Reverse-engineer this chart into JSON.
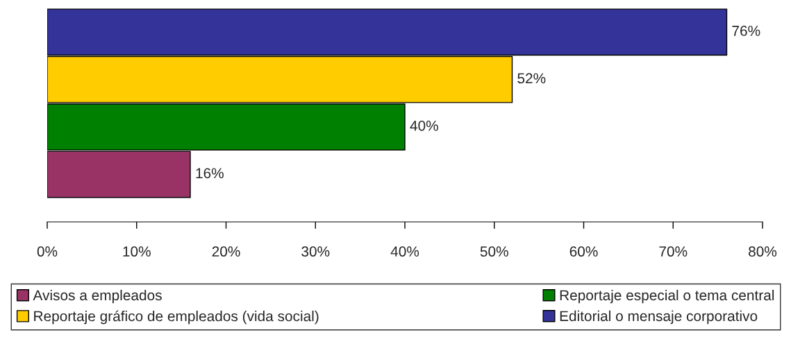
{
  "chart_data": {
    "type": "bar",
    "orientation": "horizontal",
    "categories": [
      null
    ],
    "series": [
      {
        "name": "Editorial o mensaje corporativo",
        "color": "#333399",
        "values": [
          76
        ],
        "value_labels": [
          "76%"
        ]
      },
      {
        "name": "Reportaje gráfico de empleados (vida social)",
        "color": "#ffcc00",
        "values": [
          52
        ],
        "value_labels": [
          "52%"
        ]
      },
      {
        "name": "Reportaje especial o tema central",
        "color": "#008000",
        "values": [
          40
        ],
        "value_labels": [
          "40%"
        ]
      },
      {
        "name": "Avisos a empleados",
        "color": "#993366",
        "values": [
          16
        ],
        "value_labels": [
          "16%"
        ]
      }
    ],
    "xlim": [
      0,
      80
    ],
    "xticks": [
      {
        "value": 0,
        "label": "0%"
      },
      {
        "value": 10,
        "label": "10%"
      },
      {
        "value": 20,
        "label": "20%"
      },
      {
        "value": 30,
        "label": "30%"
      },
      {
        "value": 40,
        "label": "40%"
      },
      {
        "value": 50,
        "label": "50%"
      },
      {
        "value": 60,
        "label": "60%"
      },
      {
        "value": 70,
        "label": "70%"
      },
      {
        "value": 80,
        "label": "80%"
      }
    ],
    "tick_labels": "x",
    "grid": false,
    "legend": "bottom"
  }
}
